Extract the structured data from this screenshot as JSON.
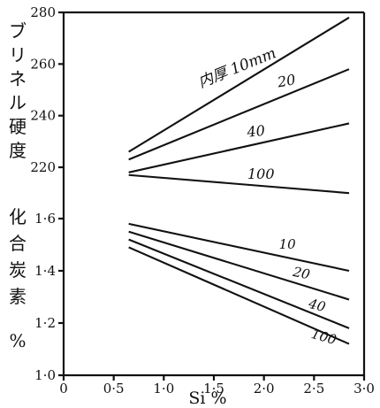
{
  "chart_data": [
    {
      "type": "line",
      "ylabel": "ブリネル硬度",
      "xlabel": "",
      "xlim": [
        0,
        3.0
      ],
      "ylim": [
        200,
        280
      ],
      "yticks": [
        "280",
        "260",
        "240",
        "220"
      ],
      "series": [
        {
          "name": "内厚 10mm",
          "x": [
            0.65,
            2.85
          ],
          "values": [
            226,
            278
          ]
        },
        {
          "name": "20",
          "x": [
            0.65,
            2.85
          ],
          "values": [
            223,
            258
          ]
        },
        {
          "name": "40",
          "x": [
            0.65,
            2.85
          ],
          "values": [
            218,
            237
          ]
        },
        {
          "name": "100",
          "x": [
            0.65,
            2.85
          ],
          "values": [
            217,
            210
          ]
        }
      ]
    },
    {
      "type": "line",
      "ylabel": "化合炭素 %",
      "xlabel": "Si %",
      "xlim": [
        0,
        3.0
      ],
      "ylim": [
        1.0,
        1.6
      ],
      "xticks": [
        "0",
        "0·5",
        "1·0",
        "1·5",
        "2·0",
        "2·5",
        "3·0"
      ],
      "yticks": [
        "1·6",
        "1·4",
        "1·2",
        "1·0"
      ],
      "series": [
        {
          "name": "10",
          "x": [
            0.65,
            2.85
          ],
          "values": [
            1.58,
            1.4
          ]
        },
        {
          "name": "20",
          "x": [
            0.65,
            2.85
          ],
          "values": [
            1.55,
            1.29
          ]
        },
        {
          "name": "40",
          "x": [
            0.65,
            2.85
          ],
          "values": [
            1.52,
            1.18
          ]
        },
        {
          "name": "100",
          "x": [
            0.65,
            2.85
          ],
          "values": [
            1.49,
            1.12
          ]
        }
      ]
    }
  ]
}
